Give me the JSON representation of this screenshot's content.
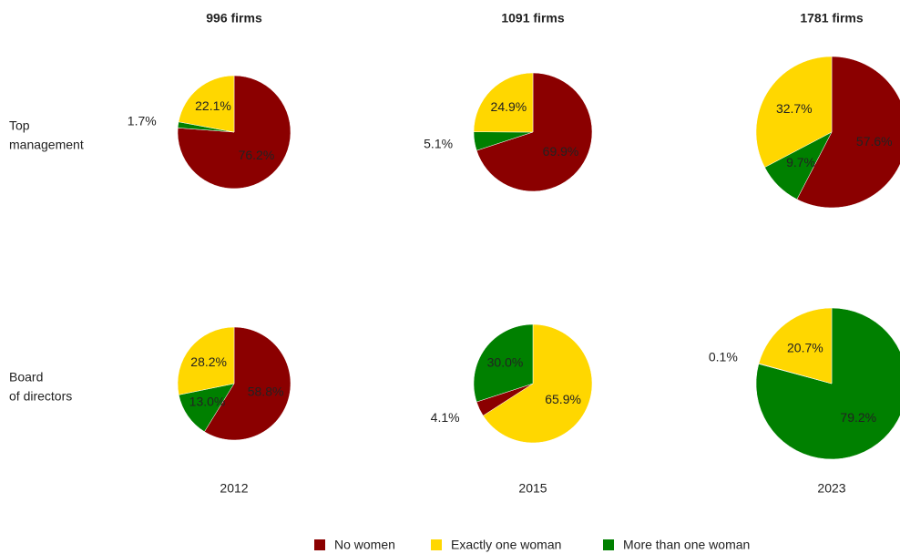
{
  "chart_data": [
    {
      "type": "pie",
      "categories": [
        "No women",
        "More than one woman",
        "Exactly one woman"
      ],
      "colors": [
        "#8b0000",
        "#008000",
        "#ffd700"
      ],
      "values": [
        76.2,
        1.7,
        22.1
      ],
      "value_labels": [
        "76.2%",
        "1.7%",
        "22.1%"
      ]
    },
    {
      "type": "pie",
      "categories": [
        "No women",
        "More than one woman",
        "Exactly one woman"
      ],
      "colors": [
        "#8b0000",
        "#008000",
        "#ffd700"
      ],
      "values": [
        69.9,
        5.1,
        24.9
      ],
      "value_labels": [
        "69.9%",
        "5.1%",
        "24.9%"
      ]
    },
    {
      "type": "pie",
      "categories": [
        "No women",
        "More than one woman",
        "Exactly one woman"
      ],
      "colors": [
        "#8b0000",
        "#008000",
        "#ffd700"
      ],
      "values": [
        57.6,
        9.7,
        32.7
      ],
      "value_labels": [
        "57.6%",
        "9.7%",
        "32.7%"
      ]
    },
    {
      "type": "pie",
      "categories": [
        "No women",
        "More than one woman",
        "Exactly one woman"
      ],
      "colors": [
        "#8b0000",
        "#008000",
        "#ffd700"
      ],
      "values": [
        58.8,
        13.0,
        28.2
      ],
      "value_labels": [
        "58.8%",
        "13.0%",
        "28.2%"
      ]
    },
    {
      "type": "pie",
      "categories": [
        "Exactly one woman",
        "No women",
        "More than one woman"
      ],
      "colors": [
        "#ffd700",
        "#8b0000",
        "#008000"
      ],
      "values": [
        65.9,
        4.1,
        30.0
      ],
      "value_labels": [
        "65.9%",
        "4.1%",
        "30.0%"
      ]
    },
    {
      "type": "pie",
      "categories": [
        "More than one woman",
        "No women",
        "Exactly one woman"
      ],
      "colors": [
        "#008000",
        "#8b0000",
        "#ffd700"
      ],
      "values": [
        79.2,
        0.1,
        20.7
      ],
      "value_labels": [
        "79.2%",
        "0.1%",
        "20.7%"
      ]
    }
  ],
  "column_titles": [
    "996 firms",
    "1091 firms",
    "1781 firms"
  ],
  "row_labels": [
    [
      "Top",
      "management"
    ],
    [
      "Board",
      "of directors"
    ]
  ],
  "years": [
    "2012",
    "2015",
    "2023"
  ],
  "legend": {
    "names": [
      "No women",
      "Exactly one woman",
      "More than one woman"
    ],
    "colors": [
      "#8b0000",
      "#ffd700",
      "#008000"
    ]
  }
}
